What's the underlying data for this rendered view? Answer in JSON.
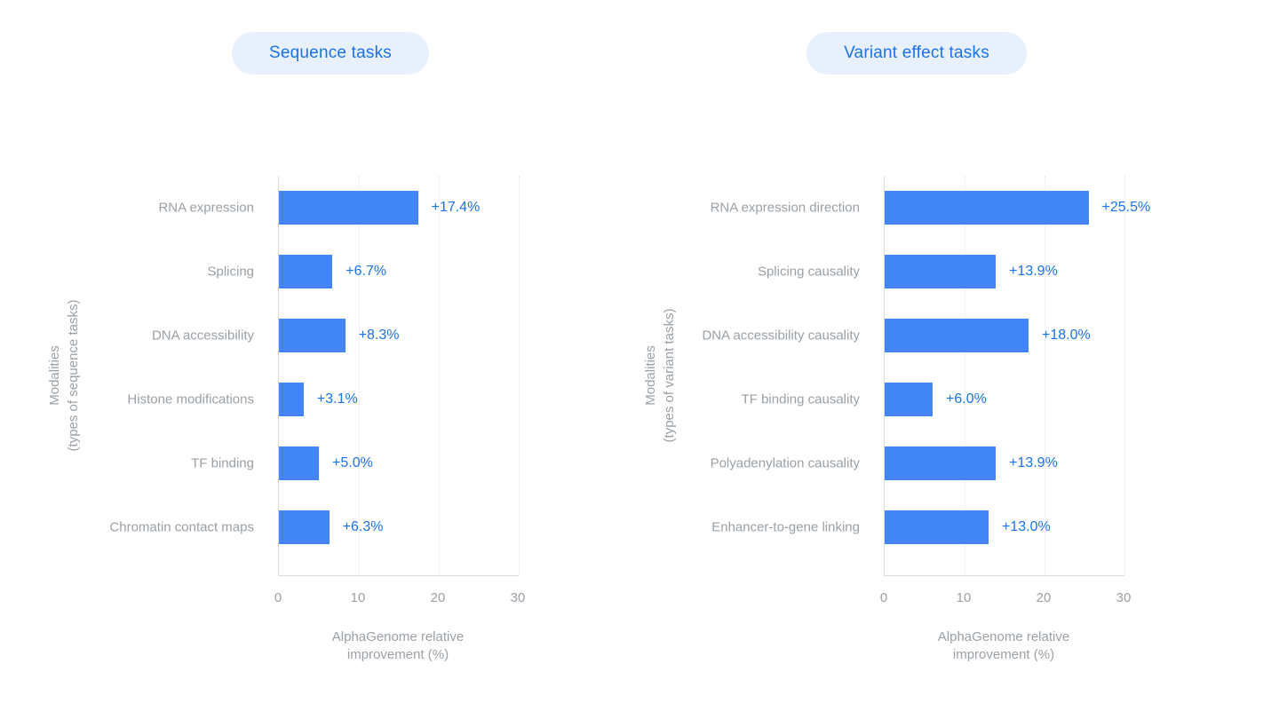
{
  "colors": {
    "page_bg": "#ffffff",
    "bar": "#4285f4",
    "value_label": "#1a73e8",
    "pill_bg": "#e8f0fe",
    "pill_text": "#1a73e8",
    "axis_text": "#9aa0a6",
    "grid": "#e6e3f4",
    "axis_line": "#dadce0"
  },
  "chart_data": [
    {
      "type": "bar",
      "orientation": "horizontal",
      "title": "Sequence tasks",
      "categories": [
        "RNA expression",
        "Splicing",
        "DNA accessibility",
        "Histone modifications",
        "TF binding",
        "Chromatin contact maps"
      ],
      "values": [
        17.4,
        6.7,
        8.3,
        3.1,
        5.0,
        6.3
      ],
      "value_labels": [
        "+17.4%",
        "+6.7%",
        "+8.3%",
        "+3.1%",
        "+5.0%",
        "+6.3%"
      ],
      "xlabel": "AlphaGenome relative\nimprovement (%)",
      "ylabel": "Modalities\n(types of sequence tasks)",
      "xlim": [
        0,
        30
      ],
      "xticks": [
        0,
        10,
        20,
        30
      ],
      "grid": "vertical-dotted",
      "legend": "none"
    },
    {
      "type": "bar",
      "orientation": "horizontal",
      "title": "Variant effect tasks",
      "categories": [
        "RNA expression direction",
        "Splicing causality",
        "DNA accessibility causality",
        "TF binding causality",
        "Polyadenylation causality",
        "Enhancer-to-gene linking"
      ],
      "values": [
        25.5,
        13.9,
        18.0,
        6.0,
        13.9,
        13.0
      ],
      "value_labels": [
        "+25.5%",
        "+13.9%",
        "+18.0%",
        "+6.0%",
        "+13.9%",
        "+13.0%"
      ],
      "xlabel": "AlphaGenome relative\nimprovement (%)",
      "ylabel": "Modalities\n(types of variant tasks)",
      "xlim": [
        0,
        30
      ],
      "xticks": [
        0,
        10,
        20,
        30
      ],
      "grid": "vertical-dotted",
      "legend": "none"
    }
  ]
}
